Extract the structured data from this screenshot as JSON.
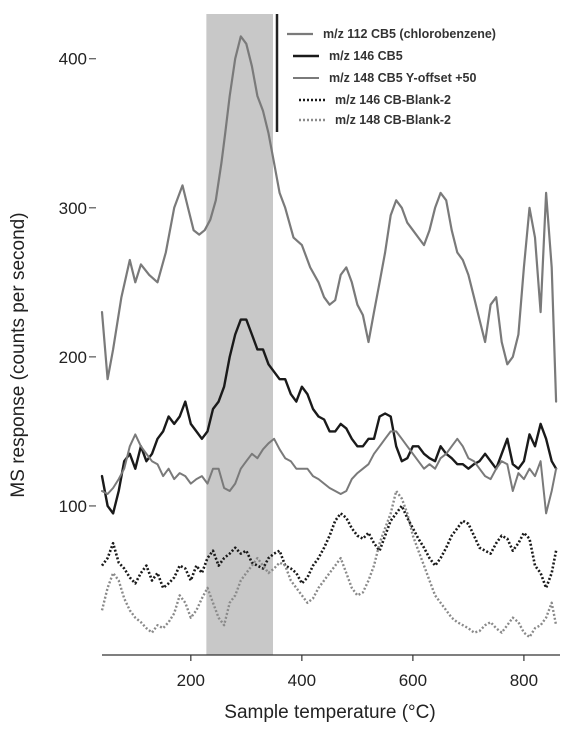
{
  "chart_data": {
    "type": "line",
    "xlabel": "Sample temperature (°C)",
    "ylabel": "MS response (counts per second)",
    "xlim": [
      40,
      865
    ],
    "ylim": [
      0,
      430
    ],
    "xticks": [
      200,
      400,
      600,
      800
    ],
    "yticks": [
      100,
      200,
      300,
      400
    ],
    "grid": false,
    "legend_position": "top-right",
    "highlight_band": {
      "x": [
        228,
        348
      ],
      "color": "#c8c8c8"
    },
    "series": [
      {
        "name": "m/z 112 CB5 (chlorobenzene)",
        "color": "#7a7a7a",
        "style": "solid",
        "width": 2.2,
        "x": [
          40,
          50,
          60,
          75,
          90,
          100,
          110,
          125,
          140,
          155,
          170,
          185,
          195,
          205,
          215,
          225,
          235,
          245,
          255,
          262,
          270,
          280,
          290,
          300,
          310,
          320,
          330,
          340,
          350,
          360,
          370,
          385,
          400,
          415,
          430,
          440,
          450,
          460,
          470,
          480,
          490,
          500,
          510,
          520,
          530,
          540,
          550,
          560,
          570,
          580,
          590,
          600,
          610,
          620,
          630,
          640,
          650,
          660,
          670,
          680,
          690,
          700,
          710,
          720,
          730,
          740,
          750,
          760,
          770,
          780,
          790,
          800,
          810,
          820,
          830,
          840,
          850,
          858
        ],
        "y": [
          230,
          185,
          205,
          240,
          265,
          250,
          262,
          255,
          250,
          270,
          300,
          315,
          300,
          285,
          282,
          285,
          292,
          305,
          330,
          350,
          375,
          400,
          415,
          410,
          395,
          375,
          365,
          350,
          330,
          310,
          300,
          280,
          275,
          260,
          250,
          240,
          235,
          238,
          255,
          260,
          250,
          235,
          228,
          210,
          230,
          250,
          270,
          295,
          305,
          300,
          290,
          285,
          280,
          275,
          285,
          300,
          310,
          305,
          285,
          270,
          265,
          255,
          240,
          225,
          210,
          235,
          240,
          210,
          195,
          200,
          215,
          260,
          300,
          280,
          230,
          310,
          260,
          170
        ]
      },
      {
        "name": "m/z 146 CB5",
        "color": "#1a1a1a",
        "style": "solid",
        "width": 2.4,
        "x": [
          40,
          50,
          60,
          70,
          80,
          90,
          100,
          110,
          120,
          130,
          140,
          150,
          160,
          170,
          180,
          190,
          200,
          210,
          220,
          230,
          240,
          250,
          260,
          270,
          280,
          290,
          300,
          310,
          320,
          330,
          340,
          350,
          360,
          370,
          380,
          390,
          400,
          410,
          420,
          430,
          440,
          450,
          460,
          470,
          480,
          490,
          500,
          510,
          520,
          530,
          540,
          550,
          560,
          570,
          580,
          590,
          600,
          610,
          620,
          630,
          640,
          650,
          660,
          670,
          680,
          690,
          700,
          710,
          720,
          730,
          740,
          750,
          760,
          770,
          780,
          790,
          800,
          810,
          820,
          830,
          840,
          850,
          858
        ],
        "y": [
          120,
          100,
          95,
          110,
          130,
          135,
          125,
          140,
          130,
          135,
          145,
          150,
          160,
          155,
          160,
          170,
          155,
          150,
          145,
          150,
          165,
          170,
          180,
          200,
          215,
          225,
          225,
          215,
          205,
          205,
          195,
          190,
          185,
          185,
          175,
          170,
          180,
          175,
          165,
          160,
          158,
          150,
          150,
          155,
          152,
          145,
          140,
          140,
          145,
          145,
          160,
          162,
          160,
          140,
          130,
          132,
          140,
          140,
          135,
          132,
          130,
          140,
          135,
          132,
          128,
          128,
          125,
          128,
          130,
          135,
          130,
          125,
          135,
          145,
          128,
          125,
          130,
          148,
          140,
          155,
          145,
          130,
          125
        ]
      },
      {
        "name": "m/z 148 CB5 Y-offset +50",
        "color": "#7a7a7a",
        "style": "solid",
        "width": 2.0,
        "x": [
          40,
          50,
          60,
          70,
          80,
          90,
          100,
          110,
          120,
          130,
          140,
          150,
          160,
          170,
          180,
          190,
          200,
          210,
          220,
          230,
          240,
          250,
          260,
          270,
          280,
          290,
          300,
          310,
          320,
          330,
          340,
          350,
          360,
          370,
          380,
          390,
          400,
          410,
          420,
          430,
          440,
          450,
          460,
          470,
          480,
          490,
          500,
          510,
          520,
          530,
          540,
          550,
          560,
          570,
          580,
          590,
          600,
          610,
          620,
          630,
          640,
          650,
          660,
          670,
          680,
          690,
          700,
          710,
          720,
          730,
          740,
          750,
          760,
          770,
          780,
          790,
          800,
          810,
          820,
          830,
          840,
          850,
          858
        ],
        "y": [
          110,
          108,
          112,
          118,
          125,
          140,
          148,
          140,
          135,
          130,
          128,
          120,
          125,
          118,
          122,
          120,
          115,
          118,
          120,
          115,
          125,
          125,
          112,
          110,
          115,
          125,
          130,
          135,
          132,
          138,
          142,
          145,
          138,
          132,
          130,
          125,
          125,
          125,
          120,
          118,
          115,
          112,
          110,
          108,
          110,
          118,
          122,
          125,
          128,
          135,
          140,
          145,
          150,
          150,
          145,
          140,
          135,
          130,
          125,
          128,
          125,
          132,
          135,
          140,
          145,
          140,
          132,
          130,
          125,
          120,
          118,
          125,
          130,
          128,
          110,
          122,
          118,
          125,
          120,
          130,
          95,
          110,
          125
        ]
      },
      {
        "name": "m/z 146 CB-Blank-2",
        "color": "#1a1a1a",
        "style": "dotted",
        "width": 2.6,
        "x": [
          40,
          50,
          60,
          70,
          80,
          90,
          100,
          110,
          120,
          130,
          140,
          150,
          160,
          170,
          180,
          190,
          200,
          210,
          220,
          230,
          240,
          250,
          260,
          270,
          280,
          290,
          300,
          310,
          320,
          330,
          340,
          350,
          360,
          370,
          380,
          390,
          400,
          410,
          420,
          430,
          440,
          450,
          460,
          470,
          480,
          490,
          500,
          510,
          520,
          530,
          540,
          550,
          560,
          570,
          580,
          590,
          600,
          610,
          620,
          630,
          640,
          650,
          660,
          670,
          680,
          690,
          700,
          710,
          720,
          730,
          740,
          750,
          760,
          770,
          780,
          790,
          800,
          810,
          820,
          830,
          840,
          850,
          858
        ],
        "y": [
          60,
          65,
          75,
          62,
          58,
          52,
          48,
          55,
          60,
          50,
          55,
          45,
          48,
          52,
          60,
          58,
          50,
          60,
          55,
          65,
          70,
          60,
          65,
          68,
          72,
          68,
          70,
          62,
          60,
          58,
          65,
          68,
          70,
          60,
          58,
          55,
          48,
          52,
          60,
          65,
          72,
          80,
          90,
          95,
          92,
          85,
          80,
          78,
          82,
          75,
          70,
          80,
          90,
          95,
          100,
          92,
          85,
          78,
          72,
          65,
          60,
          65,
          72,
          80,
          85,
          90,
          88,
          80,
          72,
          70,
          68,
          75,
          80,
          78,
          70,
          75,
          82,
          78,
          60,
          55,
          45,
          55,
          70
        ]
      },
      {
        "name": "m/z 148 CB-Blank-2",
        "color": "#8a8a8a",
        "style": "dotted",
        "width": 2.4,
        "x": [
          40,
          50,
          60,
          70,
          80,
          90,
          100,
          110,
          120,
          130,
          140,
          150,
          160,
          170,
          180,
          190,
          200,
          210,
          220,
          230,
          240,
          250,
          260,
          270,
          280,
          290,
          300,
          310,
          320,
          330,
          340,
          350,
          360,
          370,
          380,
          390,
          400,
          410,
          420,
          430,
          440,
          450,
          460,
          470,
          480,
          490,
          500,
          510,
          520,
          530,
          540,
          550,
          560,
          570,
          580,
          590,
          600,
          610,
          620,
          630,
          640,
          650,
          660,
          670,
          680,
          690,
          700,
          710,
          720,
          730,
          740,
          750,
          760,
          770,
          780,
          790,
          800,
          810,
          820,
          830,
          840,
          850,
          858
        ],
        "y": [
          30,
          45,
          55,
          50,
          38,
          30,
          25,
          22,
          18,
          15,
          20,
          18,
          22,
          28,
          40,
          35,
          25,
          30,
          38,
          45,
          35,
          25,
          20,
          35,
          40,
          50,
          55,
          60,
          65,
          60,
          55,
          58,
          62,
          60,
          50,
          45,
          40,
          35,
          38,
          45,
          50,
          55,
          60,
          65,
          55,
          45,
          40,
          42,
          50,
          60,
          75,
          85,
          95,
          110,
          105,
          95,
          80,
          70,
          60,
          50,
          40,
          35,
          30,
          25,
          22,
          20,
          18,
          15,
          16,
          20,
          22,
          18,
          15,
          20,
          25,
          22,
          15,
          12,
          18,
          20,
          25,
          35,
          20
        ]
      }
    ]
  }
}
